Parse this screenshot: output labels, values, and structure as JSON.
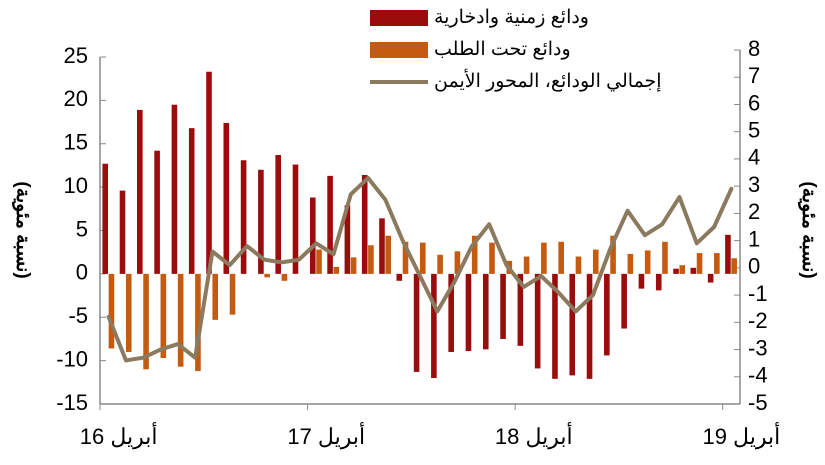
{
  "chart_data": {
    "type": "bar-line",
    "y_label": "(نسبة مئوية)",
    "y2_label": "(نسبة مئوية)",
    "categories": [
      "أبريل 16",
      null,
      null,
      null,
      null,
      null,
      null,
      null,
      null,
      null,
      null,
      null,
      "أبريل 17",
      null,
      null,
      null,
      null,
      null,
      null,
      null,
      null,
      null,
      null,
      null,
      "أبريل 18",
      null,
      null,
      null,
      null,
      null,
      null,
      null,
      null,
      null,
      null,
      null,
      "أبريل 19"
    ],
    "series": [
      {
        "name": "ودائع زمنية وادخارية",
        "color": "#9b0d0d",
        "kind": "bar",
        "values": [
          12.7,
          9.6,
          18.9,
          14.2,
          19.5,
          16.8,
          23.3,
          17.4,
          13.1,
          12,
          13.7,
          12.6,
          8.8,
          11.3,
          7.9,
          11.4,
          6.4,
          -0.8,
          -11.3,
          -12,
          -9,
          -8.9,
          -8.7,
          -7.5,
          -8.3,
          -10.9,
          -12.1,
          -11.7,
          -12.1,
          -9.4,
          -6.3,
          -1.7,
          -1.9,
          0.6,
          0.7,
          -1,
          4.5
        ]
      },
      {
        "name": "ودائع تحت الطلب",
        "color": "#c55a11",
        "kind": "bar",
        "values": [
          -8.6,
          -9,
          -11,
          -9.7,
          -10.7,
          -11.2,
          -5.3,
          -4.7,
          0,
          -0.4,
          -0.8,
          0,
          2.8,
          0.8,
          1.9,
          3.3,
          4.4,
          3.7,
          3.6,
          2.2,
          2.6,
          4.4,
          3.6,
          1.5,
          2,
          3.6,
          3.7,
          2,
          2.8,
          4.4,
          2.3,
          2.7,
          3.7,
          1,
          2.4,
          2.4,
          1.8
        ]
      },
      {
        "name": "إجمالي الودائع، المحور الأيمن",
        "color": "#8b7a5e",
        "kind": "line",
        "axis": "y2",
        "values": [
          -1.8,
          -3.4,
          -3.3,
          -3,
          -2.8,
          -3.3,
          0.6,
          0.1,
          0.8,
          0.3,
          0.2,
          0.3,
          0.9,
          0.5,
          2.7,
          3.3,
          2.5,
          1,
          -0.3,
          -1.6,
          -0.5,
          0.8,
          1.6,
          0.1,
          -0.7,
          -0.3,
          -0.9,
          -1.6,
          -1,
          0.7,
          2.1,
          1.2,
          1.6,
          2.6,
          0.9,
          1.5,
          2.9
        ]
      }
    ],
    "ylim": [
      -15,
      25
    ],
    "yticks": [
      -15,
      -10,
      -5,
      0,
      5,
      10,
      15,
      20,
      25
    ],
    "y2lim": [
      -5,
      8
    ],
    "y2ticks": [
      -5,
      -4,
      -3,
      -2,
      -1,
      0,
      1,
      2,
      3,
      4,
      5,
      6,
      7,
      8
    ]
  }
}
